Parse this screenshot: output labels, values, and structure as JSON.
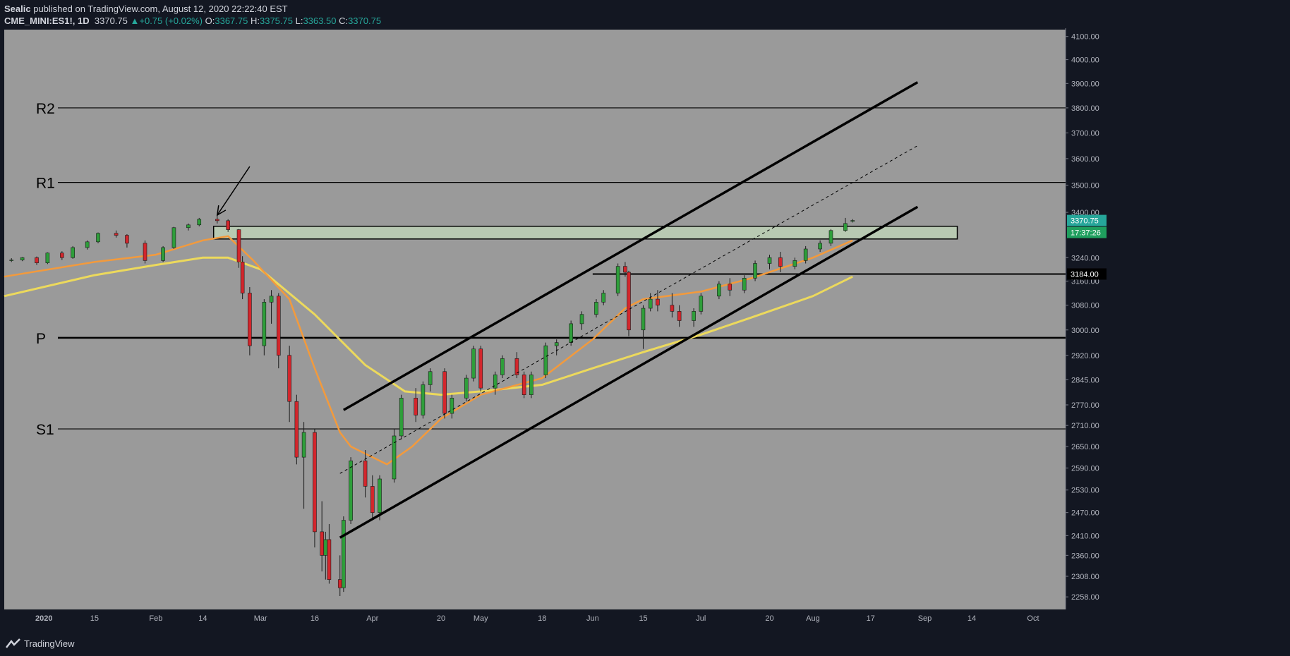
{
  "header": {
    "author": "Sealic",
    "published_text": "published on TradingView.com, August 12, 2020 22:22:40 EST",
    "symbol": "CME_MINI:ES1!, 1D",
    "last": "3370.75",
    "change_arrow": "▲",
    "change": "+0.75 (+0.02%)",
    "o_label": "O:",
    "o_value": "3367.75",
    "h_label": "H:",
    "h_value": "3375.75",
    "l_label": "L:",
    "l_value": "3363.50",
    "c_label": "C:",
    "c_value": "3370.75"
  },
  "footer": {
    "brand": "TradingView"
  },
  "colors": {
    "background": "#9a9a9a",
    "up": "#26a69a",
    "down": "#ef5350",
    "candle_up": "#2e9e3a",
    "candle_down": "#d3262c",
    "ema_fast": "#f39a3c",
    "ema_slow": "#ecd95c",
    "price_label_bg": "#26a69a",
    "timer_bg": "#1f9f5e",
    "zone_fill": "#b8c9b2"
  },
  "chart_data": {
    "type": "candlestick",
    "x_ticks": [
      {
        "label": "2020",
        "date": "2020-01-01",
        "bold": true
      },
      {
        "label": "15",
        "date": "2020-01-15"
      },
      {
        "label": "Feb",
        "date": "2020-02-01"
      },
      {
        "label": "14",
        "date": "2020-02-14"
      },
      {
        "label": "Mar",
        "date": "2020-03-01"
      },
      {
        "label": "16",
        "date": "2020-03-16"
      },
      {
        "label": "Apr",
        "date": "2020-04-01"
      },
      {
        "label": "20",
        "date": "2020-04-20"
      },
      {
        "label": "May",
        "date": "2020-05-01"
      },
      {
        "label": "18",
        "date": "2020-05-18"
      },
      {
        "label": "Jun",
        "date": "2020-06-01"
      },
      {
        "label": "15",
        "date": "2020-06-15"
      },
      {
        "label": "Jul",
        "date": "2020-07-01"
      },
      {
        "label": "20",
        "date": "2020-07-20"
      },
      {
        "label": "Aug",
        "date": "2020-08-01"
      },
      {
        "label": "17",
        "date": "2020-08-17"
      },
      {
        "label": "Sep",
        "date": "2020-09-01"
      },
      {
        "label": "14",
        "date": "2020-09-14"
      },
      {
        "label": "Oct",
        "date": "2020-10-01"
      }
    ],
    "x_range": [
      "2019-12-21",
      "2020-10-10"
    ],
    "y_ticks": [
      2258,
      2308,
      2360,
      2410,
      2470,
      2530,
      2590,
      2650,
      2710,
      2770,
      2845,
      2920,
      3000,
      3080,
      3160,
      3240,
      3400,
      3500,
      3600,
      3700,
      3800,
      3900,
      4000,
      4100
    ],
    "y_range": [
      2228,
      4130
    ],
    "y_scale": "log",
    "price_label": "3370.75",
    "timer_label": "17:37:26",
    "level_label": "3184.00",
    "pivot_levels": [
      {
        "name": "R2",
        "value": 3800
      },
      {
        "name": "R1",
        "value": 3510
      },
      {
        "name": "P",
        "value": 2975
      },
      {
        "name": "S1",
        "value": 2700
      }
    ],
    "level_line": {
      "value": 3184,
      "start": "2020-06-01"
    },
    "zone": {
      "start": "2020-02-17",
      "end": "2020-09-10",
      "low": 3305,
      "high": 3350
    },
    "channel": {
      "upper": [
        [
          "2020-03-24",
          2755
        ],
        [
          "2020-08-30",
          3905
        ]
      ],
      "lower": [
        [
          "2020-03-23",
          2405
        ],
        [
          "2020-08-30",
          3420
        ]
      ],
      "mid": [
        [
          "2020-03-23",
          2575
        ],
        [
          "2020-08-30",
          3650
        ]
      ]
    },
    "arrow": {
      "from": [
        "2020-02-27",
        3570
      ],
      "to": [
        "2020-02-18",
        3390
      ]
    },
    "ema_fast_points": [
      [
        "2019-12-21",
        3175
      ],
      [
        "2020-01-15",
        3225
      ],
      [
        "2020-02-01",
        3250
      ],
      [
        "2020-02-14",
        3300
      ],
      [
        "2020-02-21",
        3315
      ],
      [
        "2020-02-28",
        3230
      ],
      [
        "2020-03-09",
        3100
      ],
      [
        "2020-03-16",
        2880
      ],
      [
        "2020-03-23",
        2690
      ],
      [
        "2020-03-26",
        2650
      ],
      [
        "2020-04-05",
        2600
      ],
      [
        "2020-04-12",
        2650
      ],
      [
        "2020-04-20",
        2730
      ],
      [
        "2020-05-01",
        2800
      ],
      [
        "2020-05-18",
        2850
      ],
      [
        "2020-06-01",
        2970
      ],
      [
        "2020-06-10",
        3070
      ],
      [
        "2020-06-15",
        3100
      ],
      [
        "2020-07-01",
        3125
      ],
      [
        "2020-07-15",
        3170
      ],
      [
        "2020-08-01",
        3240
      ],
      [
        "2020-08-12",
        3300
      ]
    ],
    "ema_slow_points": [
      [
        "2019-12-21",
        3110
      ],
      [
        "2020-01-15",
        3180
      ],
      [
        "2020-02-01",
        3215
      ],
      [
        "2020-02-14",
        3240
      ],
      [
        "2020-02-21",
        3240
      ],
      [
        "2020-03-01",
        3200
      ],
      [
        "2020-03-16",
        3050
      ],
      [
        "2020-03-30",
        2890
      ],
      [
        "2020-04-10",
        2810
      ],
      [
        "2020-04-20",
        2800
      ],
      [
        "2020-05-01",
        2810
      ],
      [
        "2020-05-18",
        2830
      ],
      [
        "2020-06-01",
        2880
      ],
      [
        "2020-06-15",
        2930
      ],
      [
        "2020-07-01",
        2985
      ],
      [
        "2020-07-15",
        3040
      ],
      [
        "2020-08-01",
        3110
      ],
      [
        "2020-08-12",
        3175
      ]
    ],
    "candles": [
      [
        "2019-12-23",
        3230,
        3238,
        3225,
        3232
      ],
      [
        "2019-12-26",
        3232,
        3242,
        3228,
        3240
      ],
      [
        "2019-12-30",
        3240,
        3244,
        3215,
        3222
      ],
      [
        "2020-01-02",
        3222,
        3258,
        3218,
        3256
      ],
      [
        "2020-01-06",
        3256,
        3262,
        3232,
        3240
      ],
      [
        "2020-01-09",
        3240,
        3280,
        3236,
        3275
      ],
      [
        "2020-01-13",
        3275,
        3300,
        3268,
        3295
      ],
      [
        "2020-01-16",
        3295,
        3328,
        3290,
        3325
      ],
      [
        "2020-01-21",
        3325,
        3335,
        3310,
        3318
      ],
      [
        "2020-01-24",
        3318,
        3322,
        3275,
        3290
      ],
      [
        "2020-01-29",
        3290,
        3300,
        3220,
        3230
      ],
      [
        "2020-02-03",
        3230,
        3280,
        3225,
        3275
      ],
      [
        "2020-02-06",
        3275,
        3348,
        3270,
        3345
      ],
      [
        "2020-02-10",
        3345,
        3360,
        3335,
        3355
      ],
      [
        "2020-02-13",
        3355,
        3380,
        3350,
        3375
      ],
      [
        "2020-02-18",
        3375,
        3392,
        3360,
        3370
      ],
      [
        "2020-02-21",
        3370,
        3375,
        3330,
        3338
      ],
      [
        "2020-02-24",
        3338,
        3340,
        3205,
        3225
      ],
      [
        "2020-02-25",
        3225,
        3245,
        3100,
        3120
      ],
      [
        "2020-02-27",
        3120,
        3140,
        2920,
        2950
      ],
      [
        "2020-03-02",
        2950,
        3100,
        2920,
        3090
      ],
      [
        "2020-03-04",
        3090,
        3130,
        3020,
        3110
      ],
      [
        "2020-03-06",
        3110,
        3120,
        2880,
        2920
      ],
      [
        "2020-03-09",
        2920,
        2950,
        2720,
        2780
      ],
      [
        "2020-03-11",
        2780,
        2800,
        2600,
        2620
      ],
      [
        "2020-03-13",
        2620,
        2720,
        2480,
        2690
      ],
      [
        "2020-03-16",
        2690,
        2700,
        2380,
        2420
      ],
      [
        "2020-03-18",
        2420,
        2500,
        2320,
        2360
      ],
      [
        "2020-03-19",
        2360,
        2420,
        2300,
        2400
      ],
      [
        "2020-03-20",
        2400,
        2440,
        2290,
        2300
      ],
      [
        "2020-03-23",
        2300,
        2360,
        2260,
        2280
      ],
      [
        "2020-03-24",
        2280,
        2460,
        2270,
        2450
      ],
      [
        "2020-03-26",
        2450,
        2620,
        2440,
        2610
      ],
      [
        "2020-03-30",
        2610,
        2640,
        2510,
        2540
      ],
      [
        "2020-04-01",
        2540,
        2570,
        2450,
        2470
      ],
      [
        "2020-04-03",
        2470,
        2570,
        2450,
        2560
      ],
      [
        "2020-04-07",
        2560,
        2700,
        2550,
        2680
      ],
      [
        "2020-04-09",
        2680,
        2800,
        2670,
        2790
      ],
      [
        "2020-04-13",
        2790,
        2820,
        2720,
        2740
      ],
      [
        "2020-04-15",
        2740,
        2840,
        2730,
        2830
      ],
      [
        "2020-04-17",
        2830,
        2880,
        2810,
        2870
      ],
      [
        "2020-04-21",
        2870,
        2880,
        2730,
        2745
      ],
      [
        "2020-04-23",
        2745,
        2800,
        2730,
        2790
      ],
      [
        "2020-04-27",
        2790,
        2860,
        2780,
        2850
      ],
      [
        "2020-04-29",
        2850,
        2950,
        2840,
        2940
      ],
      [
        "2020-05-01",
        2940,
        2950,
        2810,
        2820
      ],
      [
        "2020-05-05",
        2820,
        2870,
        2800,
        2860
      ],
      [
        "2020-05-07",
        2860,
        2920,
        2850,
        2910
      ],
      [
        "2020-05-11",
        2910,
        2930,
        2850,
        2860
      ],
      [
        "2020-05-13",
        2860,
        2870,
        2790,
        2800
      ],
      [
        "2020-05-15",
        2800,
        2870,
        2790,
        2860
      ],
      [
        "2020-05-19",
        2860,
        2960,
        2850,
        2950
      ],
      [
        "2020-05-22",
        2950,
        2970,
        2920,
        2960
      ],
      [
        "2020-05-26",
        2960,
        3030,
        2950,
        3020
      ],
      [
        "2020-05-29",
        3020,
        3060,
        3000,
        3050
      ],
      [
        "2020-06-02",
        3050,
        3100,
        3040,
        3090
      ],
      [
        "2020-06-04",
        3090,
        3130,
        3080,
        3120
      ],
      [
        "2020-06-08",
        3120,
        3220,
        3110,
        3210
      ],
      [
        "2020-06-10",
        3210,
        3225,
        3175,
        3190
      ],
      [
        "2020-06-11",
        3190,
        3195,
        2980,
        3000
      ],
      [
        "2020-06-15",
        3000,
        3080,
        2940,
        3070
      ],
      [
        "2020-06-17",
        3070,
        3120,
        3060,
        3100
      ],
      [
        "2020-06-19",
        3100,
        3130,
        3060,
        3080
      ],
      [
        "2020-06-23",
        3080,
        3120,
        3040,
        3060
      ],
      [
        "2020-06-25",
        3060,
        3080,
        3010,
        3030
      ],
      [
        "2020-06-29",
        3030,
        3070,
        3010,
        3060
      ],
      [
        "2020-07-01",
        3060,
        3120,
        3050,
        3110
      ],
      [
        "2020-07-06",
        3110,
        3160,
        3100,
        3150
      ],
      [
        "2020-07-09",
        3150,
        3170,
        3110,
        3130
      ],
      [
        "2020-07-13",
        3130,
        3180,
        3120,
        3170
      ],
      [
        "2020-07-16",
        3170,
        3230,
        3160,
        3220
      ],
      [
        "2020-07-20",
        3220,
        3250,
        3200,
        3240
      ],
      [
        "2020-07-23",
        3240,
        3260,
        3190,
        3210
      ],
      [
        "2020-07-27",
        3210,
        3240,
        3200,
        3230
      ],
      [
        "2020-07-30",
        3230,
        3280,
        3220,
        3270
      ],
      [
        "2020-08-03",
        3270,
        3300,
        3260,
        3290
      ],
      [
        "2020-08-06",
        3290,
        3340,
        3280,
        3335
      ],
      [
        "2020-08-10",
        3335,
        3380,
        3330,
        3360
      ],
      [
        "2020-08-12",
        3367.75,
        3375.75,
        3363.5,
        3370.75
      ]
    ]
  }
}
